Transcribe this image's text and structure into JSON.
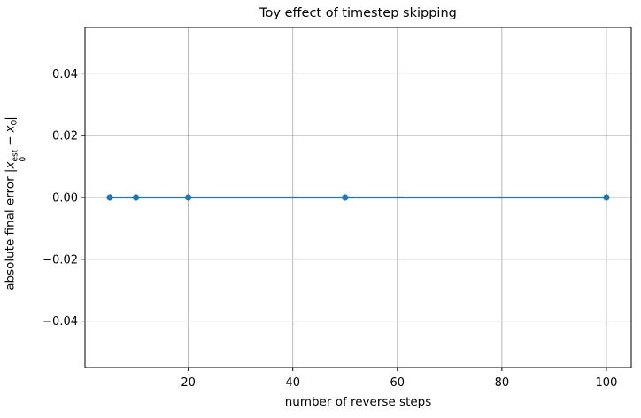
{
  "chart_data": {
    "type": "line",
    "title": "Toy effect of timestep skipping",
    "xlabel": "number of reverse steps",
    "ylabel": "absolute final error |x₀ᵉˢᵗ − x₀|",
    "ylabel_parts": {
      "prefix": "absolute final error |",
      "var": "x",
      "sup": "est",
      "sub": "0",
      "op": "−",
      "var2": "x",
      "sub2": "0",
      "suffix": "|"
    },
    "x": [
      5,
      10,
      20,
      50,
      100
    ],
    "series": [
      {
        "name": "absolute final error",
        "values": [
          0,
          0,
          0,
          0,
          0
        ],
        "color": "#1f77b4",
        "marker": "circle"
      }
    ],
    "xticks": [
      20,
      40,
      60,
      80,
      100
    ],
    "yticks": [
      -0.04,
      -0.02,
      0,
      0.02,
      0.04
    ],
    "ytick_labels": [
      "−0.04",
      "−0.02",
      "0.00",
      "0.02",
      "0.04"
    ],
    "xlim": [
      0.25,
      104.75
    ],
    "ylim": [
      -0.055,
      0.055
    ],
    "grid": true,
    "legend": "none",
    "colors": {
      "line": "#1f77b4",
      "grid": "#b0b0b0",
      "spine": "#000000",
      "background": "#ffffff",
      "text": "#000000"
    }
  }
}
